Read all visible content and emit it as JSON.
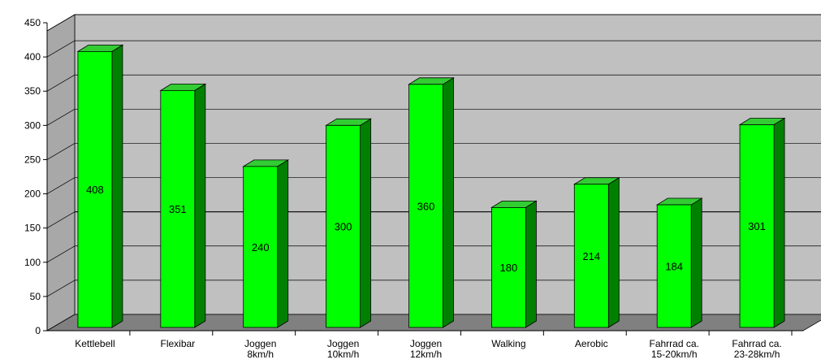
{
  "chart_data": {
    "type": "bar",
    "title": "",
    "xlabel": "",
    "ylabel": "",
    "ylim": [
      0,
      450
    ],
    "yticks": [
      0,
      50,
      100,
      150,
      200,
      250,
      300,
      350,
      400,
      450
    ],
    "grid": true,
    "categories": [
      [
        "Kettlebell"
      ],
      [
        "Flexibar"
      ],
      [
        "Joggen",
        "8km/h"
      ],
      [
        "Joggen",
        "10km/h"
      ],
      [
        "Joggen",
        "12km/h"
      ],
      [
        "Walking"
      ],
      [
        "Aerobic"
      ],
      [
        "Fahrrad ca.",
        "15-20km/h"
      ],
      [
        "Fahrrad ca.",
        "23-28km/h"
      ]
    ],
    "values": [
      408,
      351,
      240,
      300,
      360,
      180,
      214,
      184,
      301
    ],
    "data_labels": [
      "408",
      "351",
      "240",
      "300",
      "360",
      "180",
      "214",
      "184",
      "301"
    ],
    "colors": {
      "bar_front": "#00ff00",
      "bar_side": "#008000",
      "bar_top": "#33cc33",
      "wall": "#c0c0c0",
      "floor": "#808080",
      "gridline": "#000000"
    }
  }
}
